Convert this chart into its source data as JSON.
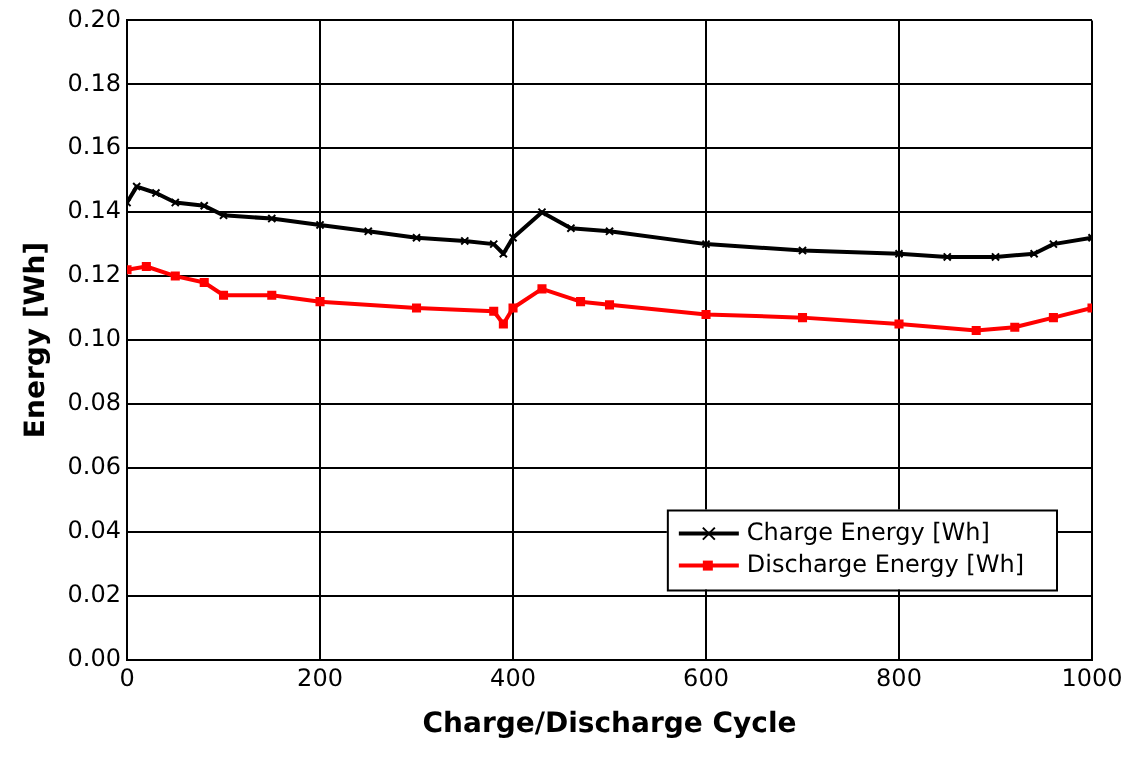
{
  "chart_data": {
    "type": "line",
    "xlabel": "Charge/Discharge Cycle",
    "ylabel": "Energy [Wh]",
    "xlim": [
      0,
      1000
    ],
    "xticks": [
      0,
      200,
      400,
      600,
      800,
      1000
    ],
    "ylim": [
      0,
      0.2
    ],
    "yticks": [
      {
        "value": 0,
        "label": "0.00"
      },
      {
        "value": 0.02,
        "label": "0.02"
      },
      {
        "value": 0.04,
        "label": "0.04"
      },
      {
        "value": 0.06,
        "label": "0.06"
      },
      {
        "value": 0.08,
        "label": "0.08"
      },
      {
        "value": 0.1,
        "label": "0.10"
      },
      {
        "value": 0.12,
        "label": "0.12"
      },
      {
        "value": 0.14,
        "label": "0.14"
      },
      {
        "value": 0.16,
        "label": "0.16"
      },
      {
        "value": 0.18,
        "label": "0.18"
      },
      {
        "value": 0.2,
        "label": "0.20"
      }
    ],
    "grid": true,
    "legend": "bottom right",
    "line_style": "solid",
    "series": [
      {
        "name": "Charge Energy [Wh]",
        "color": "#000000",
        "marker": "cross",
        "x": [
          0,
          10,
          30,
          50,
          80,
          100,
          150,
          200,
          250,
          300,
          350,
          380,
          390,
          400,
          430,
          460,
          500,
          600,
          700,
          800,
          850,
          900,
          940,
          960,
          1000
        ],
        "values": [
          0.143,
          0.148,
          0.146,
          0.143,
          0.142,
          0.139,
          0.138,
          0.136,
          0.134,
          0.132,
          0.131,
          0.13,
          0.127,
          0.132,
          0.14,
          0.135,
          0.134,
          0.13,
          0.128,
          0.127,
          0.126,
          0.126,
          0.127,
          0.13,
          0.132
        ]
      },
      {
        "name": "Discharge Energy [Wh]",
        "color": "#ff0000",
        "marker": "square",
        "x": [
          0,
          20,
          50,
          80,
          100,
          150,
          200,
          300,
          380,
          390,
          400,
          430,
          470,
          500,
          600,
          700,
          800,
          880,
          920,
          960,
          1000
        ],
        "values": [
          0.122,
          0.123,
          0.12,
          0.118,
          0.114,
          0.114,
          0.112,
          0.11,
          0.109,
          0.105,
          0.11,
          0.116,
          0.112,
          0.111,
          0.108,
          0.107,
          0.105,
          0.103,
          0.104,
          0.107,
          0.11
        ]
      }
    ]
  }
}
